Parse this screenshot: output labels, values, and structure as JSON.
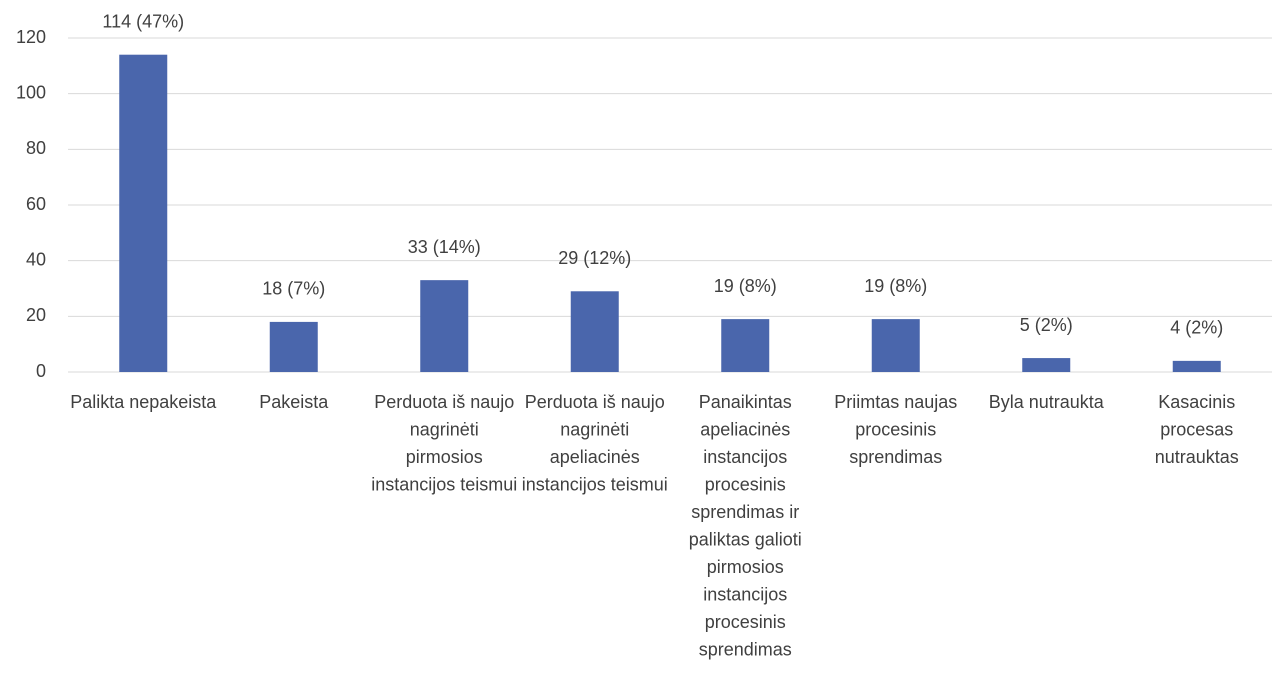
{
  "chart_data": {
    "type": "bar",
    "categories": [
      "Palikta nepakeista",
      "Pakeista",
      "Perduota iš naujo nagrinėti pirmosios instancijos teismui",
      "Perduota iš naujo nagrinėti apeliacinės instancijos teismui",
      "Panaikintas apeliacinės instancijos procesinis sprendimas ir paliktas galioti pirmosios instancijos procesinis sprendimas",
      "Priimtas naujas procesinis sprendimas",
      "Byla nutraukta",
      "Kasacinis procesas nutrauktas"
    ],
    "values": [
      114,
      18,
      33,
      29,
      19,
      19,
      5,
      4
    ],
    "value_labels": [
      "114 (47%)",
      "18 (7%)",
      "33 (14%)",
      "29 (12%)",
      "19 (8%)",
      "19 (8%)",
      "5 (2%)",
      "4 (2%)"
    ],
    "color": "#4a66ac",
    "ylim": [
      0,
      120
    ],
    "yticks": [
      0,
      20,
      40,
      60,
      80,
      100,
      120
    ],
    "grid": true
  }
}
